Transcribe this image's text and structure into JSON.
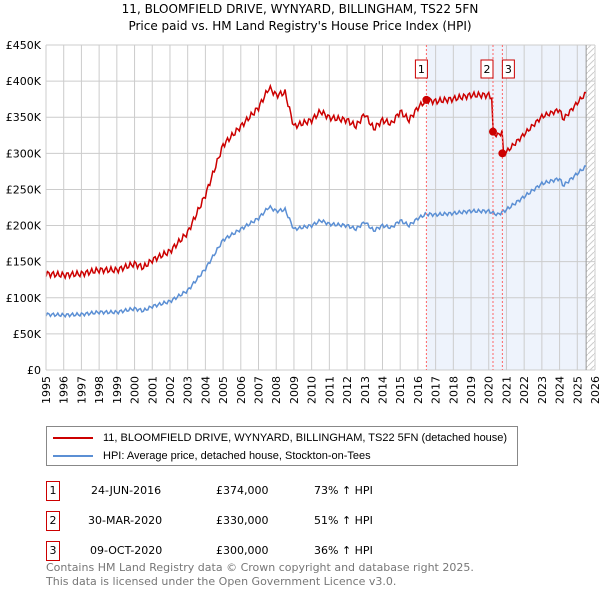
{
  "chart_data": {
    "type": "line",
    "title": "11, BLOOMFIELD DRIVE, WYNYARD, BILLINGHAM, TS22 5FN",
    "subtitle": "Price paid vs. HM Land Registry's House Price Index (HPI)",
    "xlim": [
      1995,
      2026
    ],
    "ylim": [
      0,
      450000
    ],
    "y_ticks": [
      0,
      50000,
      100000,
      150000,
      200000,
      250000,
      300000,
      350000,
      400000,
      450000
    ],
    "y_tick_labels": [
      "£0",
      "£50K",
      "£100K",
      "£150K",
      "£200K",
      "£250K",
      "£300K",
      "£350K",
      "£400K",
      "£450K"
    ],
    "x_tick_labels": [
      "1995",
      "1996",
      "1997",
      "1998",
      "1999",
      "2000",
      "2001",
      "2002",
      "2003",
      "2004",
      "2005",
      "2006",
      "2007",
      "2008",
      "2009",
      "2010",
      "2011",
      "2012",
      "2013",
      "2014",
      "2015",
      "2016",
      "2017",
      "2018",
      "2019",
      "2020",
      "2021",
      "2022",
      "2023",
      "2024",
      "2025",
      "2026"
    ],
    "grid": true,
    "series": [
      {
        "name": "11, BLOOMFIELD DRIVE, WYNYARD, BILLINGHAM, TS22 5FN (detached house)",
        "color": "#cc0000",
        "segments": [
          [
            1995,
            2016.48,
            1.73
          ],
          [
            2016.48,
            2020.24,
            1.73
          ],
          [
            2020.24,
            2020.77,
            1.51
          ],
          [
            2020.77,
            2025.5,
            1.36
          ]
        ]
      },
      {
        "name": "HPI: Average price, detached house, Stockton-on-Tees",
        "color": "#5b8fd4",
        "x": [
          1995,
          1996,
          1997,
          1998,
          1999,
          2000,
          2000.5,
          2001,
          2002,
          2003,
          2004,
          2005,
          2006,
          2007,
          2007.6,
          2008,
          2008.5,
          2009,
          2010,
          2010.5,
          2011,
          2012,
          2012.5,
          2013,
          2013.5,
          2014,
          2014.5,
          2015,
          2015.5,
          2016,
          2016.48,
          2017,
          2018,
          2019,
          2020,
          2020.5,
          2021,
          2022,
          2023,
          2024,
          2024.2,
          2025,
          2025.5
        ],
        "y": [
          77000,
          76000,
          77000,
          80000,
          80000,
          85000,
          82000,
          88000,
          95000,
          110000,
          140000,
          180000,
          195000,
          210000,
          226000,
          220000,
          222000,
          195000,
          200000,
          207000,
          202000,
          200000,
          195000,
          205000,
          193000,
          200000,
          197000,
          207000,
          200000,
          210000,
          216000,
          215000,
          217000,
          220000,
          220000,
          215000,
          222000,
          240000,
          258000,
          265000,
          255000,
          272000,
          282000
        ]
      }
    ],
    "sales": [
      {
        "id": "1",
        "date": "24-JUN-2016",
        "x": 2016.48,
        "price": 374000,
        "price_label": "£374,000",
        "hpi": "73% ↑ HPI"
      },
      {
        "id": "2",
        "date": "30-MAR-2020",
        "x": 2020.24,
        "price": 330000,
        "price_label": "£330,000",
        "hpi": "51% ↑ HPI"
      },
      {
        "id": "3",
        "date": "09-OCT-2020",
        "x": 2020.77,
        "price": 300000,
        "price_label": "£300,000",
        "hpi": "36% ↑ HPI"
      }
    ],
    "shaded_from": 2016.48,
    "hatched_from": 2025.5
  },
  "legend": {
    "red": "11, BLOOMFIELD DRIVE, WYNYARD, BILLINGHAM, TS22 5FN (detached house)",
    "blue": "HPI: Average price, detached house, Stockton-on-Tees"
  },
  "footer": {
    "line1": "Contains HM Land Registry data © Crown copyright and database right 2025.",
    "line2": "This data is licensed under the Open Government Licence v3.0."
  }
}
